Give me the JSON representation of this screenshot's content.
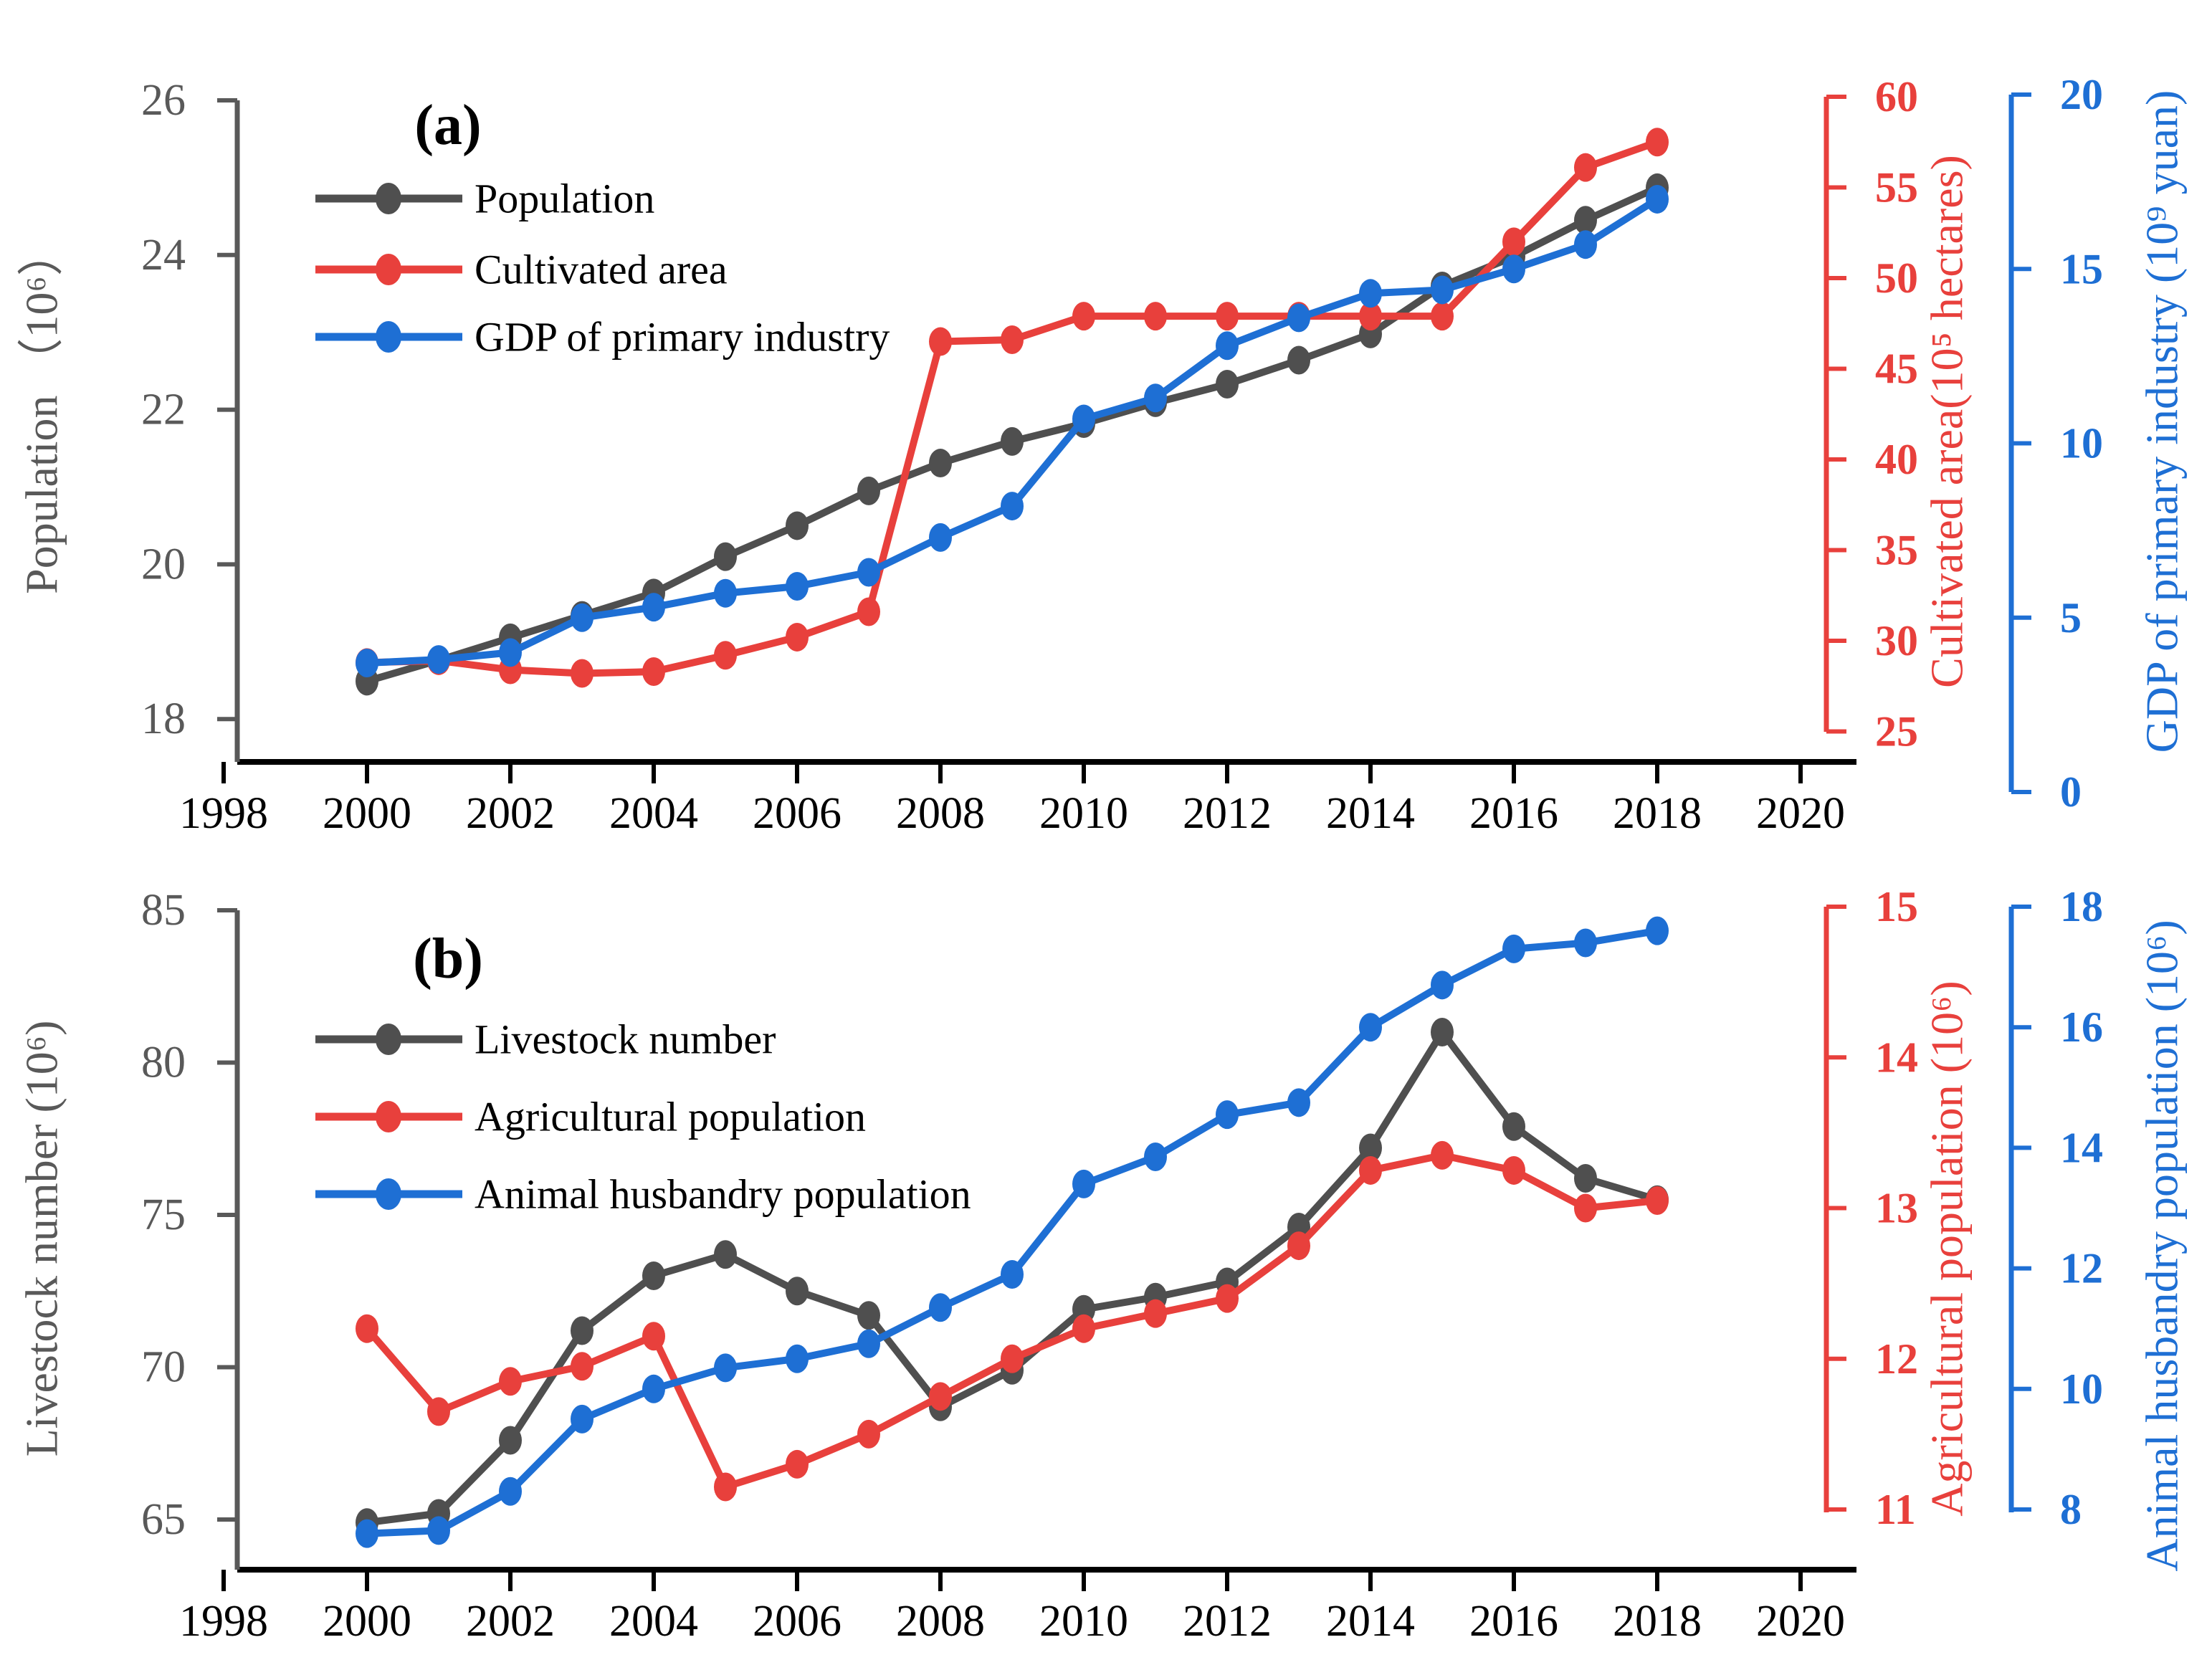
{
  "figure": {
    "background": "#ffffff",
    "accent_colors": {
      "gray": "#4f4f4f",
      "red": "#e8403c",
      "blue": "#1e6fd4",
      "axis_gray": "#666666",
      "black": "#000000"
    }
  },
  "chart_data": [
    {
      "type": "line",
      "panel_label": "(a)",
      "legend_position": "top-left",
      "grid": false,
      "x": [
        2000,
        2001,
        2002,
        2003,
        2004,
        2005,
        2006,
        2007,
        2008,
        2009,
        2010,
        2011,
        2012,
        2013,
        2014,
        2015,
        2016,
        2017,
        2018
      ],
      "xlim": [
        1998,
        2020
      ],
      "xticks": [
        1998,
        2000,
        2002,
        2004,
        2006,
        2008,
        2010,
        2012,
        2014,
        2016,
        2018,
        2020
      ],
      "axes": {
        "left": {
          "label": "Population （10⁶）",
          "color": "#595959",
          "ticks": [
            18,
            20,
            22,
            24,
            26
          ],
          "range": [
            17.4,
            26
          ]
        },
        "right1": {
          "label": "Cultivated area(10⁵ hectares)",
          "color": "#e8403c",
          "ticks": [
            25,
            30,
            35,
            40,
            45,
            50,
            55,
            60
          ],
          "range": [
            25,
            60
          ]
        },
        "right2": {
          "label": "GDP of primary industry (10⁹ yuan)",
          "color": "#1e6fd4",
          "ticks": [
            0,
            5,
            10,
            15,
            20
          ],
          "range": [
            0,
            20
          ]
        }
      },
      "series": [
        {
          "name": "Population",
          "axis": "left",
          "color": "#4f4f4f",
          "values": [
            18.49,
            18.76,
            19.05,
            19.34,
            19.63,
            20.1,
            20.5,
            20.95,
            21.31,
            21.59,
            21.82,
            22.09,
            22.33,
            22.64,
            22.98,
            23.6,
            23.98,
            24.45,
            24.87
          ]
        },
        {
          "name": "Cultivated area",
          "axis": "right1",
          "color": "#e8403c",
          "values": [
            28.8,
            28.9,
            28.4,
            28.2,
            28.3,
            29.2,
            30.2,
            31.6,
            46.5,
            46.6,
            47.9,
            47.9,
            47.9,
            47.9,
            47.9,
            47.9,
            52.0,
            56.1,
            57.5
          ]
        },
        {
          "name": "GDP of primary industry",
          "axis": "right2",
          "color": "#1e6fd4",
          "values": [
            3.7,
            3.8,
            4.0,
            5.0,
            5.3,
            5.7,
            5.9,
            6.3,
            7.3,
            8.2,
            10.7,
            11.3,
            12.8,
            13.6,
            14.3,
            14.4,
            15.0,
            15.7,
            17.0
          ]
        }
      ]
    },
    {
      "type": "line",
      "panel_label": "(b)",
      "legend_position": "top-left",
      "grid": false,
      "x": [
        2000,
        2001,
        2002,
        2003,
        2004,
        2005,
        2006,
        2007,
        2008,
        2009,
        2010,
        2011,
        2012,
        2013,
        2014,
        2015,
        2016,
        2017,
        2018
      ],
      "xlim": [
        1998,
        2020
      ],
      "xticks": [
        1998,
        2000,
        2002,
        2004,
        2006,
        2008,
        2010,
        2012,
        2014,
        2016,
        2018,
        2020
      ],
      "axes": {
        "left": {
          "label": "Livestock number (10⁶)",
          "color": "#595959",
          "ticks": [
            65,
            70,
            75,
            80,
            85
          ],
          "range": [
            63.4,
            85
          ]
        },
        "right1": {
          "label": "Agricultural population (10⁶)",
          "color": "#e8403c",
          "ticks": [
            11,
            12,
            13,
            14,
            15
          ],
          "range": [
            11,
            15
          ]
        },
        "right2": {
          "label": "Animal husbandry population (10⁶)",
          "color": "#1e6fd4",
          "ticks": [
            8,
            10,
            12,
            14,
            16,
            18
          ],
          "range": [
            8,
            18
          ]
        }
      },
      "series": [
        {
          "name": "Livestock number",
          "axis": "left",
          "color": "#4f4f4f",
          "values": [
            64.9,
            65.2,
            67.6,
            71.2,
            73.0,
            73.7,
            72.5,
            71.7,
            68.7,
            69.9,
            71.9,
            72.3,
            72.8,
            74.6,
            77.2,
            81.0,
            77.9,
            76.2,
            75.5
          ]
        },
        {
          "name": "Agricultural population",
          "axis": "right1",
          "color": "#e8403c",
          "values": [
            12.2,
            11.65,
            11.85,
            11.95,
            12.15,
            11.15,
            11.3,
            11.5,
            11.75,
            12.0,
            12.2,
            12.3,
            12.4,
            12.75,
            13.25,
            13.35,
            13.25,
            13.0,
            13.05
          ]
        },
        {
          "name": "Animal husbandry population",
          "axis": "right2",
          "color": "#1e6fd4",
          "values": [
            7.6,
            7.65,
            8.3,
            9.5,
            10.0,
            10.35,
            10.5,
            10.75,
            11.35,
            11.9,
            13.4,
            13.85,
            14.55,
            14.75,
            16.0,
            16.7,
            17.3,
            17.4,
            17.6
          ]
        }
      ]
    }
  ]
}
